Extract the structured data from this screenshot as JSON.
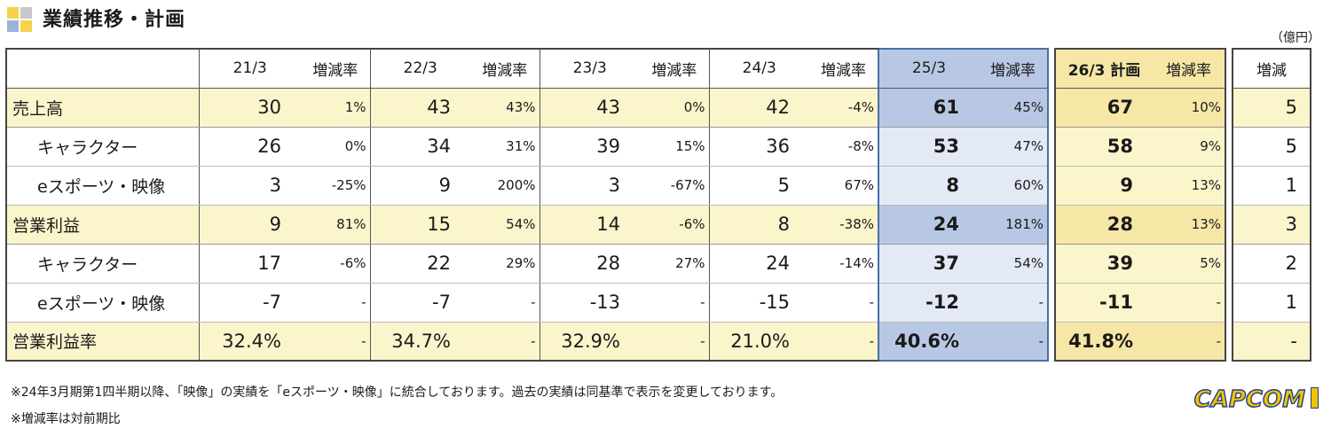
{
  "title": "業績推移・計画",
  "unit": "（億円）",
  "header": {
    "years": [
      "21/3",
      "22/3",
      "23/3",
      "24/3",
      "25/3",
      "26/3 計画"
    ],
    "rate_label": "増減率",
    "change_label": "増減"
  },
  "rows": [
    {
      "label": "売上高",
      "vals": [
        "30",
        "43",
        "43",
        "42",
        "61",
        "67"
      ],
      "rates": [
        "1%",
        "43%",
        "0%",
        "-4%",
        "45%",
        "10%"
      ],
      "change": "5"
    },
    {
      "label": "キャラクター",
      "vals": [
        "26",
        "34",
        "39",
        "36",
        "53",
        "58"
      ],
      "rates": [
        "0%",
        "31%",
        "15%",
        "-8%",
        "47%",
        "9%"
      ],
      "change": "5"
    },
    {
      "label": "eスポーツ・映像",
      "vals": [
        "3",
        "9",
        "3",
        "5",
        "8",
        "9"
      ],
      "rates": [
        "-25%",
        "200%",
        "-67%",
        "67%",
        "60%",
        "13%"
      ],
      "change": "1"
    },
    {
      "label": "営業利益",
      "vals": [
        "9",
        "15",
        "14",
        "8",
        "24",
        "28"
      ],
      "rates": [
        "81%",
        "54%",
        "-6%",
        "-38%",
        "181%",
        "13%"
      ],
      "change": "3"
    },
    {
      "label": "キャラクター",
      "vals": [
        "17",
        "22",
        "28",
        "24",
        "37",
        "39"
      ],
      "rates": [
        "-6%",
        "29%",
        "27%",
        "-14%",
        "54%",
        "5%"
      ],
      "change": "2"
    },
    {
      "label": "eスポーツ・映像",
      "vals": [
        "-7",
        "-7",
        "-13",
        "-15",
        "-12",
        "-11"
      ],
      "rates": [
        "-",
        "-",
        "-",
        "-",
        "-",
        "-"
      ],
      "change": "1"
    },
    {
      "label": "営業利益率",
      "vals": [
        "32.4%",
        "34.7%",
        "32.9%",
        "21.0%",
        "40.6%",
        "41.8%"
      ],
      "rates": [
        "-",
        "-",
        "-",
        "-",
        "-",
        "-"
      ],
      "change": "-"
    }
  ],
  "notes": [
    "※24年3月期第1四半期以降、「映像」の実績を「eスポーツ・映像」に統合しております。過去の実績は同基準で表示を変更しております。",
    "※増減率は対前期比"
  ],
  "logo_text": "CAPCOM"
}
